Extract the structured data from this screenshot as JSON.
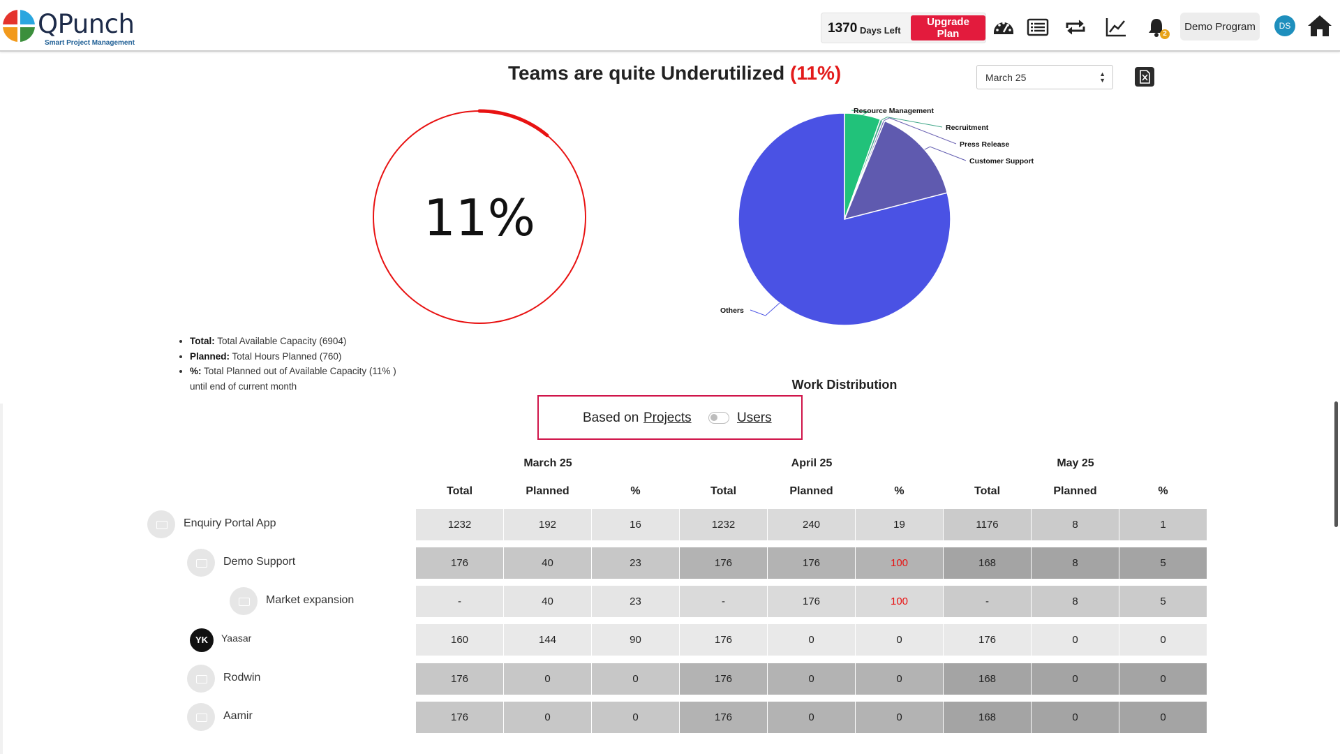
{
  "header": {
    "logo_name": "QPunch",
    "logo_tagline": "Smart Project Management",
    "days_left_number": "1370",
    "days_left_label": "Days Left",
    "upgrade_label": "Upgrade Plan",
    "notification_count": "2",
    "program_label": "Demo Program",
    "avatar_initials": "DS",
    "icons": [
      "dashboard-icon",
      "list-icon",
      "repeat-icon",
      "trend-chart-icon",
      "bell-icon",
      "home-icon"
    ]
  },
  "summary": {
    "title_prefix": "Teams are quite Underutilized",
    "title_pct": "(11%)",
    "month_selected": "March 25",
    "gauge_text": "11%",
    "gauge_value_percent": 11,
    "legend": [
      {
        "label": "Total:",
        "text": "Total Available Capacity (6904)"
      },
      {
        "label": "Planned:",
        "text": "Total Hours Planned (760)"
      },
      {
        "label": "%:",
        "text": "Total Planned out of Available Capacity (11% )"
      }
    ],
    "legend_note": "until end of current month"
  },
  "chart_data": {
    "type": "pie",
    "title": "Work Distribution",
    "labels": [
      "Resource Management",
      "Recruitment",
      "Press Release",
      "Customer Support",
      "Others"
    ],
    "values": [
      5.5,
      0.4,
      0.3,
      14.8,
      79
    ],
    "colors": [
      "#21c27a",
      "#3fa688",
      "#6f66b4",
      "#5f5aaf",
      "#4a52e4"
    ]
  },
  "toggle": {
    "prefix": "Based on",
    "projects_label": "Projects",
    "users_label": "Users",
    "state": "Projects"
  },
  "table": {
    "months": [
      "March 25",
      "April 25",
      "May 25"
    ],
    "columns": [
      "Total",
      "Planned",
      "%"
    ],
    "rows": [
      {
        "label": "Enquiry Portal App",
        "values": [
          "1232",
          "192",
          "16",
          "1232",
          "240",
          "19",
          "1176",
          "8",
          "1"
        ]
      },
      {
        "label": "Demo Support",
        "values": [
          "176",
          "40",
          "23",
          "176",
          "176",
          "100",
          "168",
          "8",
          "5"
        ]
      },
      {
        "label": "Market expansion",
        "values": [
          "-",
          "40",
          "23",
          "-",
          "176",
          "100",
          "-",
          "8",
          "5"
        ]
      },
      {
        "label": "Yaasar",
        "initials": "YK",
        "values": [
          "160",
          "144",
          "90",
          "176",
          "0",
          "0",
          "176",
          "0",
          "0"
        ]
      },
      {
        "label": "Rodwin",
        "values": [
          "176",
          "0",
          "0",
          "176",
          "0",
          "0",
          "168",
          "0",
          "0"
        ]
      },
      {
        "label": "Aamir",
        "values": [
          "176",
          "0",
          "0",
          "176",
          "0",
          "0",
          "168",
          "0",
          "0"
        ]
      }
    ],
    "over_capacity_color": "#e81212"
  }
}
